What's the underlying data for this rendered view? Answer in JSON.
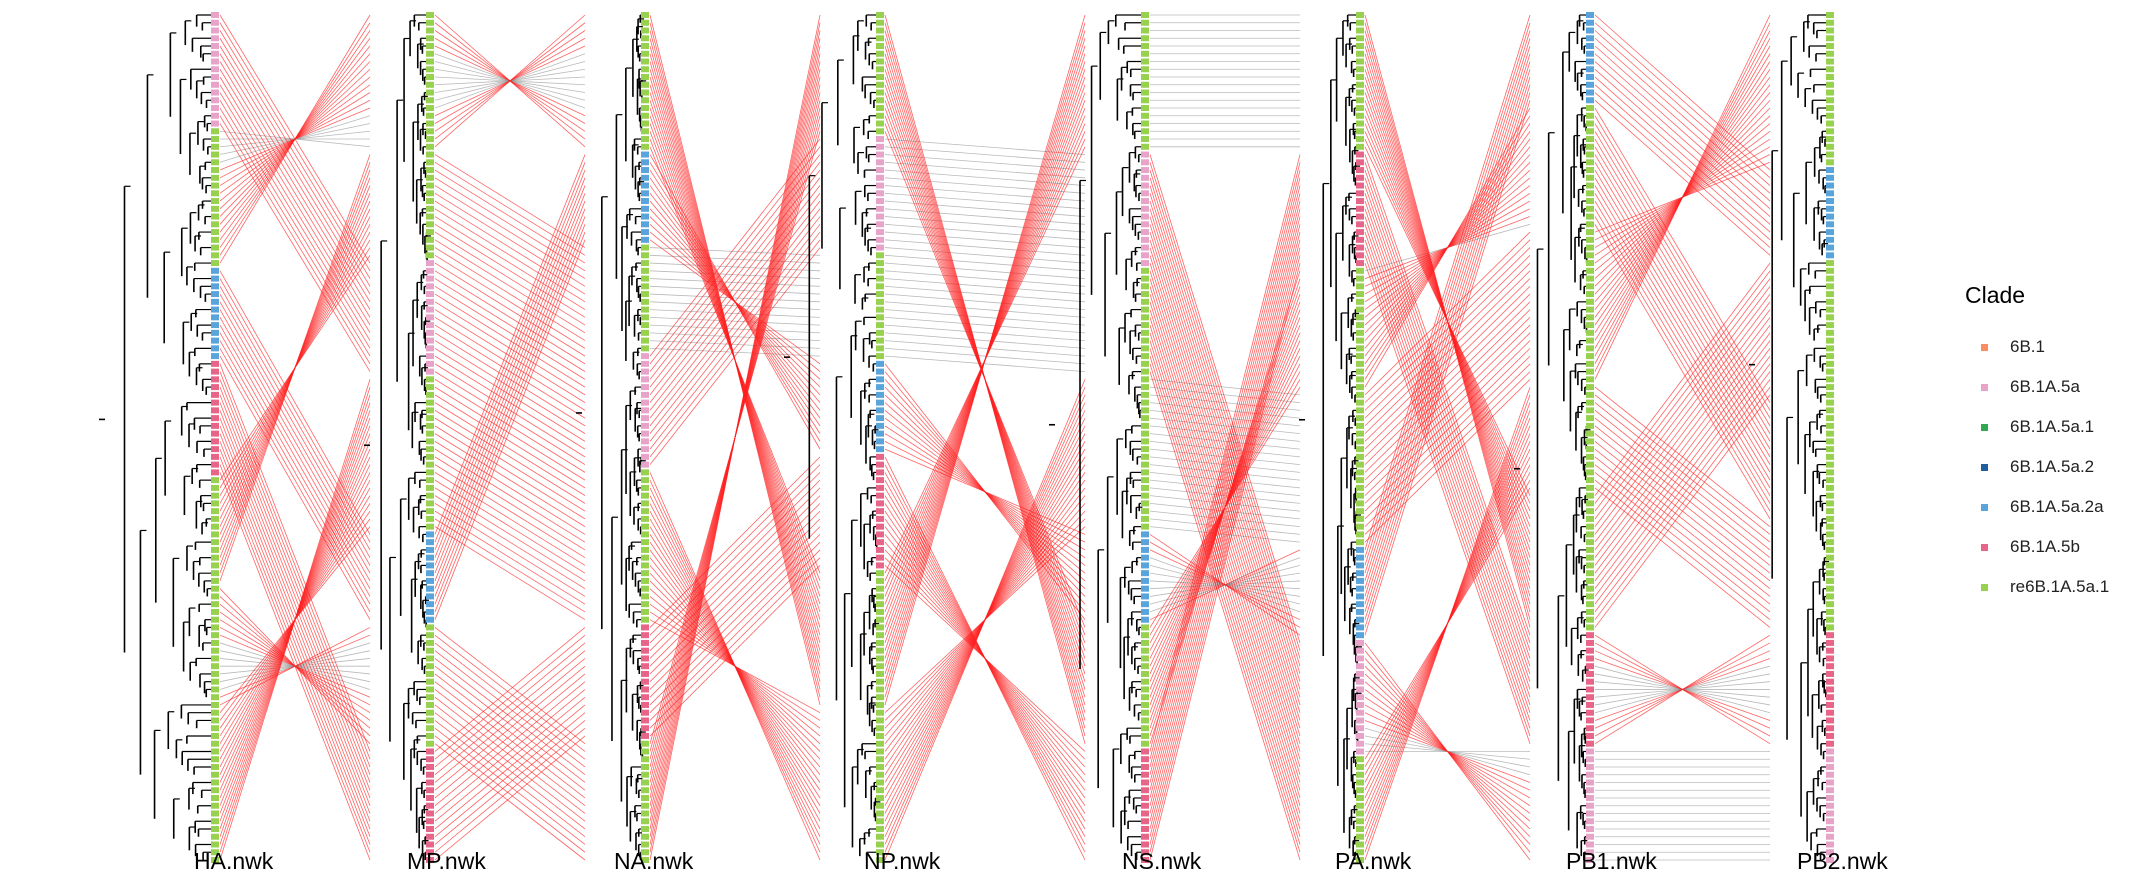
{
  "trees": [
    {
      "label": "HA.nwk"
    },
    {
      "label": "MP.nwk"
    },
    {
      "label": "NA.nwk"
    },
    {
      "label": "NP.nwk"
    },
    {
      "label": "NS.nwk"
    },
    {
      "label": "PA.nwk"
    },
    {
      "label": "PB1.nwk"
    },
    {
      "label": "PB2.nwk"
    }
  ],
  "legend": {
    "title": "Clade",
    "items": [
      {
        "label": "6B.1",
        "color": "#fc8d62"
      },
      {
        "label": "6B.1A.5a",
        "color": "#e7a4c8"
      },
      {
        "label": "6B.1A.5a.1",
        "color": "#33a853"
      },
      {
        "label": "6B.1A.5a.2",
        "color": "#1f5fa0"
      },
      {
        "label": "6B.1A.5a.2a",
        "color": "#5aa4dc"
      },
      {
        "label": "6B.1A.5b",
        "color": "#e8658a"
      },
      {
        "label": "re6B.1A.5a.1",
        "color": "#98d050"
      }
    ]
  },
  "colors": {
    "reassortant_link": "#ff2020",
    "consistent_link": "#8a8a8a",
    "branch": "#000000"
  }
}
